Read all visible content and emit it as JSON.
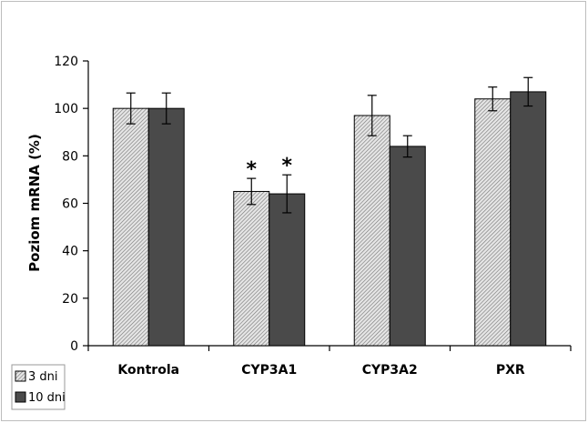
{
  "chart_data": {
    "type": "bar",
    "ylabel": "Poziom mRNA (%)",
    "ylim": [
      0,
      120
    ],
    "yticks": [
      "0",
      "20",
      "40",
      "60",
      "80",
      "100",
      "120"
    ],
    "categories": [
      "Kontrola",
      "CYP3A1",
      "CYP3A2",
      "PXR"
    ],
    "series": [
      {
        "name": "3 dni",
        "values": [
          100,
          65,
          97,
          104
        ],
        "errors": [
          6.5,
          5.5,
          8.5,
          5
        ],
        "pattern": "diagonal-hatch",
        "color": "#c8c8c8"
      },
      {
        "name": "10 dni",
        "values": [
          100,
          64,
          84,
          107
        ],
        "errors": [
          6.5,
          8,
          4.5,
          6
        ],
        "pattern": "solid",
        "color": "#4a4a4a"
      }
    ],
    "annotations": [
      {
        "text": "*",
        "category": "CYP3A1",
        "series": "3 dni"
      },
      {
        "text": "*",
        "category": "CYP3A1",
        "series": "10 dni"
      }
    ],
    "grid": false,
    "legend_position": "bottom-left"
  }
}
